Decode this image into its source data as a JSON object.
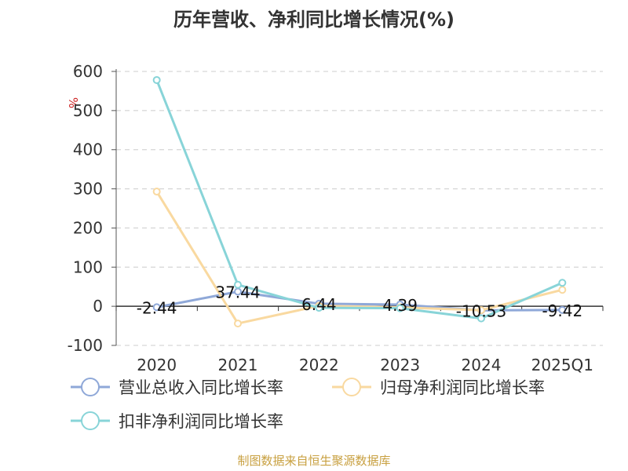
{
  "chart_data": {
    "type": "line",
    "title": "历年营收、净利同比增长情况(%)",
    "ylabel": "%",
    "ylim": [
      -100,
      600
    ],
    "yticks": [
      600,
      500,
      400,
      300,
      200,
      100,
      0,
      -100
    ],
    "ytick_labels": [
      "600",
      "500",
      "400",
      "300",
      "200",
      "100",
      "0",
      "-100"
    ],
    "grid": true,
    "legend_position": "bottom",
    "categories": [
      "2020",
      "2021",
      "2022",
      "2023",
      "2024",
      "2025Q1"
    ],
    "series": [
      {
        "name": "营业总收入同比增长率",
        "color": "#8fa8d8",
        "values": [
          -2.44,
          37.44,
          6.44,
          4.39,
          -10.53,
          -9.42
        ],
        "labels": [
          "-2.44",
          "37.44",
          "6.44",
          "4.39",
          "-10.53",
          "-9.42"
        ]
      },
      {
        "name": "归母净利润同比增长率",
        "color": "#f9d9a0",
        "values": [
          293,
          -44,
          1,
          -3,
          -10,
          42
        ]
      },
      {
        "name": "扣非净利润同比增长率",
        "color": "#88d4d8",
        "values": [
          578,
          55,
          -4,
          -5,
          -31,
          60
        ]
      }
    ]
  },
  "footer": {
    "source": "制图数据来自恒生聚源数据库"
  }
}
